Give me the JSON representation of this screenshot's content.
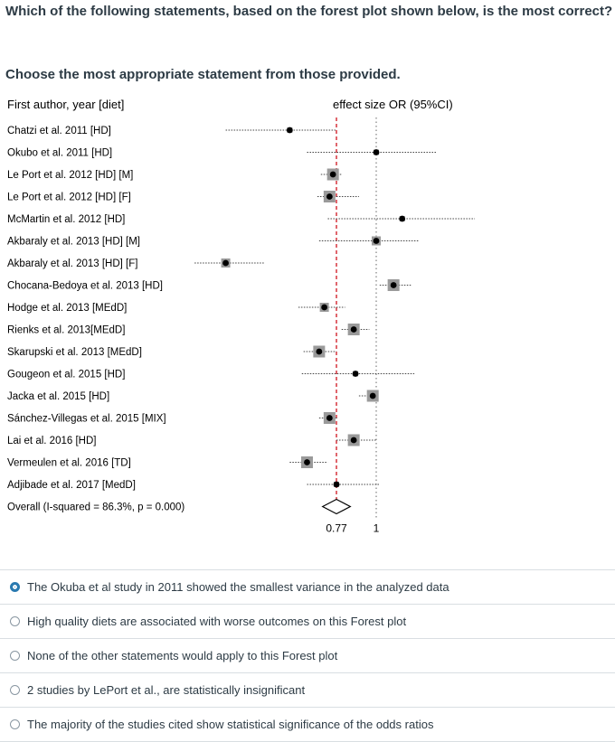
{
  "question": {
    "text": "Which of the following statements, based on the forest plot shown below, is the most correct?",
    "instruction": "Choose the most appropriate statement from those provided."
  },
  "chart_data": {
    "type": "forest",
    "header_left": "First author, year [diet]",
    "header_right": "effect size OR (95%CI)",
    "x_ticks": [
      "0.77",
      "1"
    ],
    "reference_lines": {
      "overall_effect": 0.77,
      "null_effect": 1
    },
    "studies": [
      {
        "label": "Chatzi et al. 2011 [HD]",
        "or": 0.5,
        "low": 0.13,
        "high": 0.77,
        "square": "small"
      },
      {
        "label": "Okubo et al. 2011 [HD]",
        "or": 1.0,
        "low": 0.6,
        "high": 1.35,
        "square": "small"
      },
      {
        "label": "Le Port et al. 2012 [HD] [M]",
        "or": 0.75,
        "low": 0.68,
        "high": 0.8,
        "square": "large"
      },
      {
        "label": "Le Port et al. 2012 [HD] [F]",
        "or": 0.73,
        "low": 0.66,
        "high": 0.9,
        "square": "large"
      },
      {
        "label": "McMartin et al. 2012 [HD]",
        "or": 1.15,
        "low": 0.72,
        "high": 1.57,
        "square": "small"
      },
      {
        "label": "Akbaraly et al. 2013 [HD] [M]",
        "or": 1.0,
        "low": 0.67,
        "high": 1.25,
        "square": "medium"
      },
      {
        "label": "Akbaraly et al. 2013 [HD] [F]",
        "or": 0.13,
        "low": -0.05,
        "high": 0.35,
        "square": "medium"
      },
      {
        "label": "Chocana-Bedoya et al. 2013 [HD]",
        "or": 1.1,
        "low": 1.02,
        "high": 1.2,
        "square": "large"
      },
      {
        "label": "Hodge et al. 2013 [MEdD]",
        "or": 0.7,
        "low": 0.55,
        "high": 0.82,
        "square": "medium"
      },
      {
        "label": "Rienks et al. 2013[MEdD]",
        "or": 0.87,
        "low": 0.8,
        "high": 0.96,
        "square": "large"
      },
      {
        "label": "Skarupski et al. 2013 [MEdD]",
        "or": 0.67,
        "low": 0.58,
        "high": 0.77,
        "square": "large"
      },
      {
        "label": "Gougeon et al. 2015 [HD]",
        "or": 0.88,
        "low": 0.57,
        "high": 1.22,
        "square": "small"
      },
      {
        "label": "Jacka et al. 2015 [HD]",
        "or": 0.98,
        "low": 0.9,
        "high": 1.0,
        "square": "large"
      },
      {
        "label": "Sánchez-Villegas et al. 2015 [MIX]",
        "or": 0.73,
        "low": 0.67,
        "high": 0.78,
        "square": "large"
      },
      {
        "label": "Lai et al. 2016 [HD]",
        "or": 0.87,
        "low": 0.77,
        "high": 1.0,
        "square": "large"
      },
      {
        "label": "Vermeulen et al. 2016 [TD]",
        "or": 0.6,
        "low": 0.5,
        "high": 0.72,
        "square": "large"
      },
      {
        "label": "Adjibade et al. 2017 [MedD]",
        "or": 0.77,
        "low": 0.6,
        "high": 1.02,
        "square": "small"
      }
    ],
    "overall": {
      "label": "Overall  (I-squared = 86.3%, p = 0.000)",
      "or": 0.77,
      "low": 0.69,
      "high": 0.85
    }
  },
  "options": [
    {
      "label": "The Okuba et al study in 2011 showed the smallest variance in the analyzed data",
      "selected": true
    },
    {
      "label": "High quality diets are associated with worse outcomes on this Forest plot",
      "selected": false
    },
    {
      "label": "None of the other statements would apply to this Forest plot",
      "selected": false
    },
    {
      "label": "2 studies by LePort et al., are statistically insignificant",
      "selected": false
    },
    {
      "label": "The majority of the studies cited show statistical significance of the odds ratios",
      "selected": false
    }
  ]
}
